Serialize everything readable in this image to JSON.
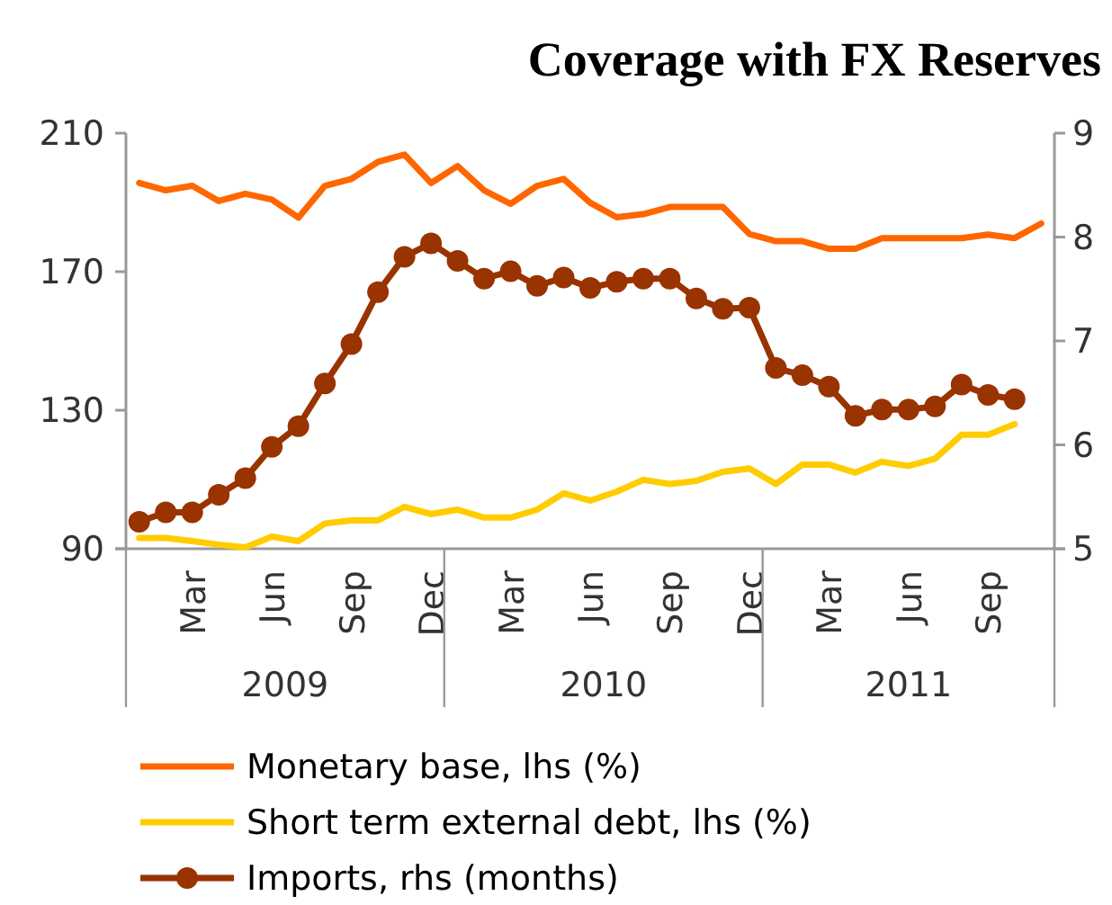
{
  "chart_data": {
    "type": "line",
    "title": "Coverage with FX Reserves",
    "categories": [
      null,
      null,
      "Mar",
      null,
      null,
      "Jun",
      null,
      null,
      "Sep",
      null,
      null,
      "Dec",
      null,
      null,
      "Mar",
      null,
      null,
      "Jun",
      null,
      null,
      "Sep",
      null,
      null,
      "Dec",
      null,
      null,
      "Mar",
      null,
      null,
      "Jun",
      null,
      null,
      "Sep",
      null,
      null
    ],
    "annotations": [
      "2009",
      "2010",
      "2011"
    ],
    "ylim": [
      90,
      210
    ],
    "yticks": [
      90,
      130,
      170,
      210
    ],
    "y2lim": [
      5,
      9
    ],
    "y2ticks": [
      5,
      6,
      7,
      8,
      9
    ],
    "grid": false,
    "legend": "bottom",
    "series": [
      {
        "name": "Monetary base, lhs (%)",
        "color": "#ff6600",
        "marker": "none",
        "values": [
          195.6,
          193.5,
          194.8,
          190.4,
          192.5,
          190.8,
          185.6,
          194.8,
          196.8,
          201.7,
          203.8,
          195.6,
          200.5,
          193.5,
          189.6,
          194.8,
          196.8,
          189.9,
          185.7,
          186.6,
          188.7,
          188.7,
          188.7,
          180.9,
          178.8,
          178.8,
          176.6,
          176.6,
          179.7,
          179.7,
          179.7,
          179.7,
          180.7,
          179.7,
          183.9
        ]
      },
      {
        "name": "Short term external debt, lhs (%)",
        "color": "#ffcc00",
        "marker": "none",
        "values": [
          93.1,
          93.1,
          92.2,
          91.2,
          90.4,
          93.5,
          92.2,
          97.3,
          98.2,
          98.2,
          102.1,
          100.0,
          101.3,
          99.0,
          99.0,
          101.3,
          106.0,
          103.9,
          106.5,
          109.9,
          108.7,
          109.6,
          112.2,
          113.2,
          108.7,
          114.3,
          114.3,
          112.0,
          115.1,
          113.9,
          116.0,
          122.9,
          122.9,
          126.0,
          null
        ]
      },
      {
        "name": "Imports, rhs (months)",
        "color": "#993300",
        "marker": "circle",
        "axis": "y2",
        "values": [
          5.26,
          5.35,
          5.35,
          5.52,
          5.68,
          5.98,
          6.18,
          6.59,
          6.97,
          7.47,
          7.81,
          7.94,
          7.77,
          7.6,
          7.67,
          7.53,
          7.61,
          7.51,
          7.57,
          7.6,
          7.6,
          7.41,
          7.31,
          7.32,
          6.74,
          6.67,
          6.56,
          6.28,
          6.34,
          6.34,
          6.37,
          6.58,
          6.48,
          6.44,
          null
        ]
      }
    ]
  }
}
